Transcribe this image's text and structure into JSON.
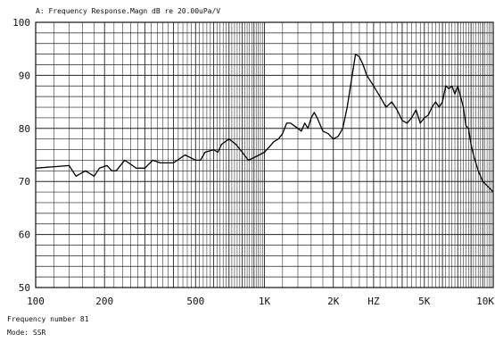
{
  "chart_data": {
    "type": "line",
    "title": "A: Frequency Response.Magn dB re 20.00uPa/V",
    "xscale": "log",
    "xlim": [
      100,
      10000
    ],
    "ylim": [
      50,
      100
    ],
    "grid": true,
    "y_ticks": [
      {
        "value": 100,
        "label": "100"
      },
      {
        "value": 90,
        "label": "90"
      },
      {
        "value": 80,
        "label": "80"
      },
      {
        "value": 70,
        "label": "70"
      },
      {
        "value": 60,
        "label": "60"
      },
      {
        "value": 50,
        "label": "50"
      }
    ],
    "x_ticks": [
      {
        "value": 100,
        "label": "100"
      },
      {
        "value": 200,
        "label": "200"
      },
      {
        "value": 500,
        "label": "500"
      },
      {
        "value": 1000,
        "label": "1K"
      },
      {
        "value": 2000,
        "label": "2K"
      },
      {
        "value": 5000,
        "label": "5K"
      },
      {
        "value": 10000,
        "label": "10K"
      }
    ],
    "x_unit_label": "HZ",
    "x_unit_value": 3000,
    "series": [
      {
        "x": [
          100,
          140,
          150,
          165,
          180,
          190,
          205,
          215,
          225,
          245,
          265,
          275,
          300,
          325,
          350,
          400,
          450,
          500,
          525,
          550,
          600,
          625,
          650,
          700,
          750,
          800,
          850,
          900,
          1000,
          1050,
          1100,
          1150,
          1200,
          1250,
          1300,
          1350,
          1400,
          1450,
          1500,
          1550,
          1600,
          1650,
          1700,
          1800,
          1900,
          2000,
          2100,
          2200,
          2300,
          2500,
          2600,
          2700,
          2800,
          2900,
          3000,
          3200,
          3400,
          3600,
          3800,
          4000,
          4200,
          4400,
          4600,
          4800,
          5000,
          5200,
          5400,
          5600,
          5800,
          6000,
          6200,
          6400,
          6600,
          6800,
          7000,
          7200,
          7400,
          7600,
          7800,
          8000,
          8200,
          8600,
          9000,
          9500,
          10000
        ],
        "y": [
          72.5,
          73,
          71,
          72,
          71,
          72.5,
          73,
          72,
          72,
          74,
          73,
          72.5,
          72.5,
          74,
          73.5,
          73.5,
          75,
          74,
          74,
          75.5,
          76,
          75.5,
          77,
          78,
          77,
          75.5,
          74,
          74.5,
          75.5,
          76.5,
          77.5,
          78,
          79,
          81,
          81,
          80.5,
          80,
          79.5,
          81,
          80,
          82,
          83,
          82,
          79.5,
          79,
          78,
          78.5,
          80,
          84,
          94,
          93.5,
          92,
          90,
          89,
          88,
          86,
          84,
          85,
          83.5,
          81.5,
          81,
          82,
          83.5,
          81,
          82,
          82.5,
          84,
          85,
          84,
          85,
          88,
          87.5,
          88,
          86.5,
          88,
          86,
          84,
          80.5,
          80,
          77,
          75,
          72,
          70,
          69,
          68
        ]
      }
    ]
  },
  "footer": {
    "frequency_number": "Frequency number 81",
    "mode": "Mode: SSR"
  }
}
